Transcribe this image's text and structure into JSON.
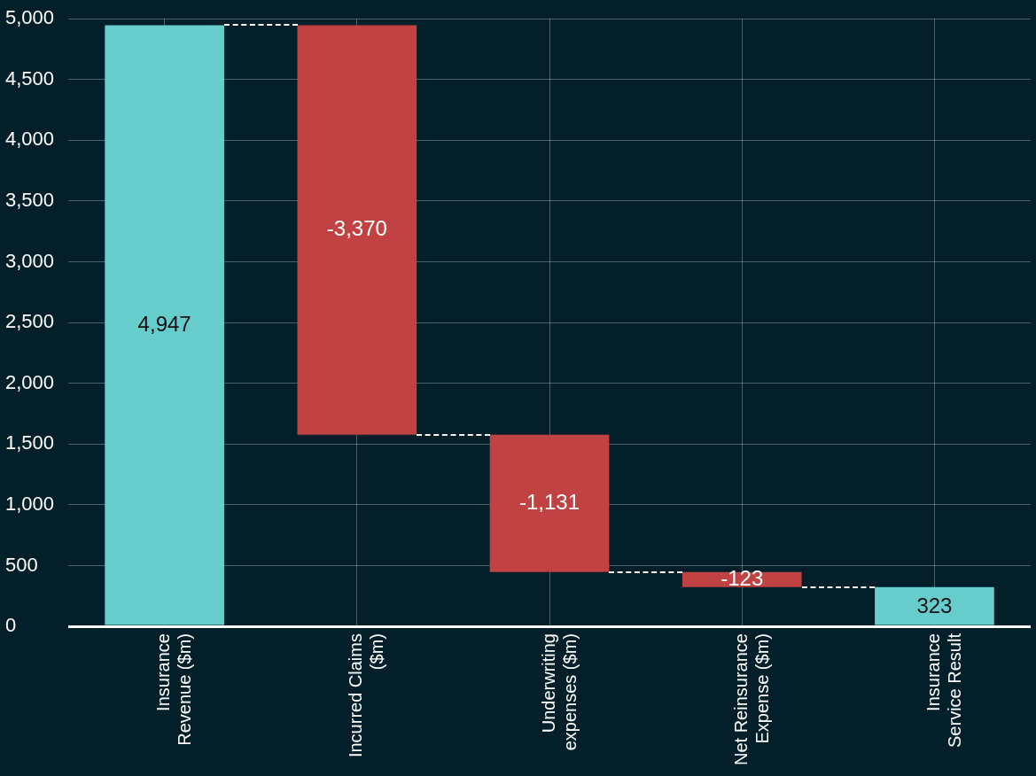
{
  "chart_data": {
    "type": "bar",
    "categories": [
      "Insurance Revenue ($m)",
      "Incurred Claims ($m)",
      "Underwriting expenses ($m)",
      "Net Reinsurance Expense ($m)",
      "Insurance Service Result"
    ],
    "values": [
      4947,
      -3370,
      -1131,
      -123,
      323
    ],
    "base": [
      0,
      4947,
      1577,
      446,
      0
    ],
    "colors": [
      "#66cdcc",
      "#c04242",
      "#c04242",
      "#c04242",
      "#66cdcc"
    ],
    "value_labels": [
      "4,947",
      "-3,370",
      "-1,131",
      "-123",
      "323"
    ],
    "ylim": [
      0,
      5000
    ],
    "yticks": [
      {
        "value": 0,
        "label": "0"
      },
      {
        "value": 500,
        "label": "500"
      },
      {
        "value": 1000,
        "label": "1,000"
      },
      {
        "value": 1500,
        "label": "1,500"
      },
      {
        "value": 2000,
        "label": "2,000"
      },
      {
        "value": 2500,
        "label": "2,500"
      },
      {
        "value": 3000,
        "label": "3,000"
      },
      {
        "value": 3500,
        "label": "3,500"
      },
      {
        "value": 4000,
        "label": "4,000"
      },
      {
        "value": 4500,
        "label": "4,500"
      },
      {
        "value": 5000,
        "label": "5,000"
      }
    ],
    "grid": true,
    "legend": false
  }
}
